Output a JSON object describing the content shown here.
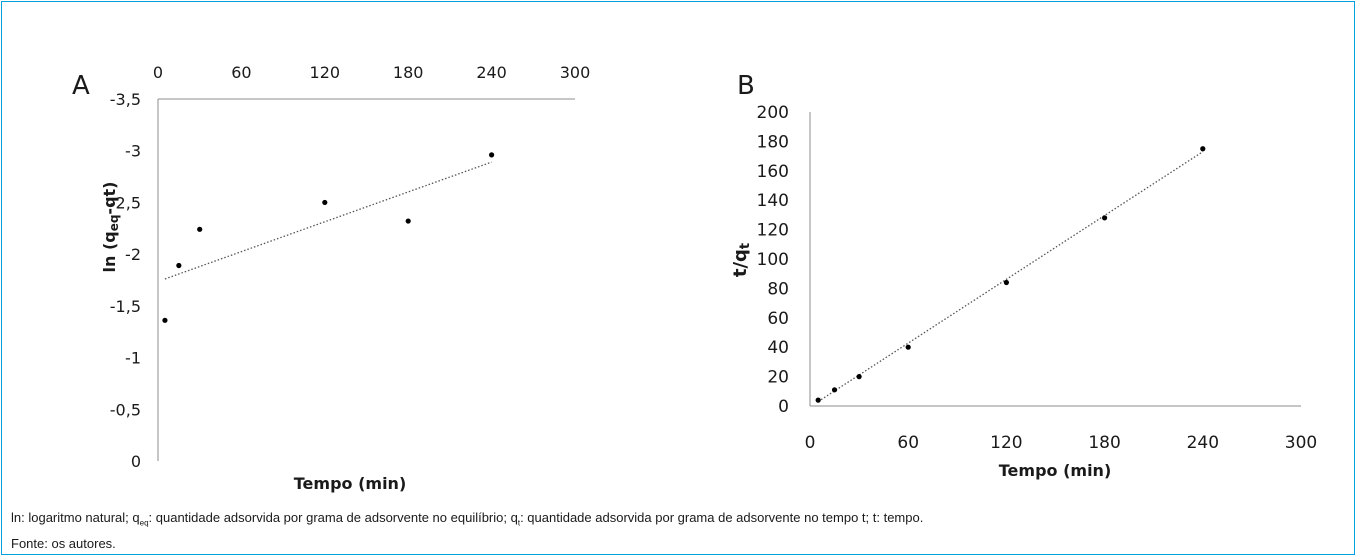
{
  "chart_data": [
    {
      "panel": "A",
      "type": "scatter",
      "xlabel": "Tempo (min)",
      "ylabel_main": "ln (q",
      "ylabel_sub": "eq",
      "ylabel_end": "-qt)",
      "xlim": [
        0,
        300
      ],
      "ylim": [
        -3.5,
        0
      ],
      "xticks": [
        "0",
        "60",
        "120",
        "180",
        "240",
        "300"
      ],
      "yticks": [
        "0",
        "-0,5",
        "-1",
        "-1,5",
        "-2",
        "-2,5",
        "-3",
        "-3,5"
      ],
      "x_axis_position": "top",
      "points": [
        {
          "x": 5,
          "y": -1.36
        },
        {
          "x": 15,
          "y": -1.89
        },
        {
          "x": 30,
          "y": -2.24
        },
        {
          "x": 120,
          "y": -2.5
        },
        {
          "x": 180,
          "y": -2.32
        },
        {
          "x": 240,
          "y": -2.96
        }
      ],
      "trendline": {
        "x": [
          5,
          240
        ],
        "y": [
          -1.76,
          -2.89
        ],
        "style": "dotted"
      },
      "grid": false
    },
    {
      "panel": "B",
      "type": "scatter",
      "xlabel": "Tempo (min)",
      "ylabel_main": "t/q",
      "ylabel_sub": "t",
      "xlim": [
        0,
        300
      ],
      "ylim": [
        0,
        200
      ],
      "xticks": [
        "0",
        "60",
        "120",
        "180",
        "240",
        "300"
      ],
      "yticks": [
        "0",
        "20",
        "40",
        "60",
        "80",
        "100",
        "120",
        "140",
        "160",
        "180",
        "200"
      ],
      "x_axis_position": "bottom",
      "points": [
        {
          "x": 5,
          "y": 4
        },
        {
          "x": 15,
          "y": 11
        },
        {
          "x": 30,
          "y": 20
        },
        {
          "x": 60,
          "y": 40
        },
        {
          "x": 120,
          "y": 84
        },
        {
          "x": 180,
          "y": 128
        },
        {
          "x": 240,
          "y": 175
        }
      ],
      "trendline": {
        "x": [
          5,
          240
        ],
        "y": [
          3,
          173
        ],
        "style": "dotted"
      },
      "grid": false
    }
  ],
  "caption": {
    "line1": {
      "p1": "ln: logaritmo natural; q",
      "s1": "eq",
      "p2": ": quantidade adsorvida por grama de adsorvente no equilíbrio; q",
      "s2": "t",
      "p3": ": quantidade adsorvida por grama de adsorvente no tempo t; t: tempo."
    },
    "line2": "Fonte: os autores."
  }
}
